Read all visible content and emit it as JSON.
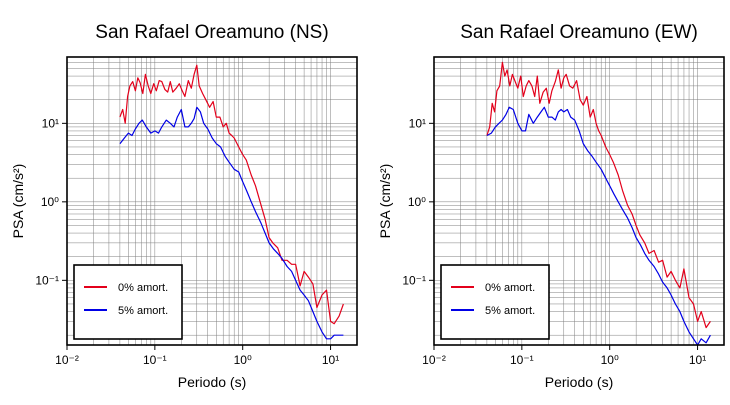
{
  "chart_data": [
    {
      "type": "line",
      "title": "San Rafael Oreamuno (NS)",
      "xlabel": "Periodo (s)",
      "ylabel": "PSA (cm/s²)",
      "xscale": "log",
      "yscale": "log",
      "xlim": [
        0.01,
        20
      ],
      "ylim": [
        0.015,
        70
      ],
      "xticks": [
        {
          "value": 0.01,
          "label": "10⁻²"
        },
        {
          "value": 0.1,
          "label": "10⁻¹"
        },
        {
          "value": 1,
          "label": "10⁰"
        },
        {
          "value": 10,
          "label": "10¹"
        }
      ],
      "yticks": [
        {
          "value": 0.1,
          "label": "10⁻¹"
        },
        {
          "value": 1,
          "label": "10⁰"
        },
        {
          "value": 10,
          "label": "10¹"
        }
      ],
      "grid": true,
      "legend_position": "bottom-left",
      "series": [
        {
          "name": "0% amort.",
          "color": "#e3001b",
          "x": [
            0.04,
            0.043,
            0.046,
            0.049,
            0.052,
            0.056,
            0.06,
            0.064,
            0.068,
            0.073,
            0.078,
            0.084,
            0.09,
            0.097,
            0.104,
            0.112,
            0.12,
            0.13,
            0.14,
            0.15,
            0.16,
            0.175,
            0.19,
            0.205,
            0.22,
            0.24,
            0.26,
            0.28,
            0.3,
            0.32,
            0.35,
            0.38,
            0.42,
            0.46,
            0.5,
            0.55,
            0.6,
            0.65,
            0.7,
            0.75,
            0.8,
            0.9,
            1.0,
            1.1,
            1.25,
            1.4,
            1.6,
            1.8,
            2.0,
            2.2,
            2.5,
            2.8,
            3.2,
            3.6,
            4.0,
            4.5,
            5.0,
            5.6,
            6.3,
            7.0,
            8.0,
            9.0,
            10.0,
            11.0,
            12.5,
            14.0
          ],
          "values": [
            12,
            15,
            10,
            22,
            30,
            34,
            26,
            38,
            33,
            24,
            42,
            30,
            24,
            32,
            26,
            35,
            34,
            27,
            25,
            34,
            25,
            28,
            32,
            26,
            22,
            35,
            28,
            42,
            55,
            30,
            24,
            20,
            16,
            19,
            12,
            12,
            9,
            10,
            7.5,
            7,
            6.5,
            5,
            4,
            3.4,
            2.2,
            1.6,
            0.95,
            0.6,
            0.35,
            0.3,
            0.26,
            0.18,
            0.18,
            0.16,
            0.16,
            0.085,
            0.13,
            0.11,
            0.09,
            0.045,
            0.065,
            0.075,
            0.03,
            0.028,
            0.035,
            0.05
          ]
        },
        {
          "name": "5% amort.",
          "color": "#0000e6",
          "x": [
            0.04,
            0.045,
            0.05,
            0.055,
            0.06,
            0.066,
            0.072,
            0.08,
            0.09,
            0.1,
            0.11,
            0.12,
            0.135,
            0.15,
            0.165,
            0.18,
            0.2,
            0.22,
            0.24,
            0.26,
            0.28,
            0.3,
            0.33,
            0.36,
            0.4,
            0.45,
            0.5,
            0.56,
            0.63,
            0.7,
            0.8,
            0.9,
            1.0,
            1.12,
            1.25,
            1.4,
            1.6,
            1.8,
            2.0,
            2.25,
            2.5,
            2.8,
            3.2,
            3.6,
            4.0,
            4.5,
            5.0,
            5.6,
            6.3,
            7.0,
            8.0,
            9.0,
            10.0,
            11.0,
            12.5,
            14.0
          ],
          "values": [
            5.5,
            6.5,
            7.5,
            7,
            8.5,
            10,
            11,
            9,
            7.5,
            8,
            7.5,
            9,
            11,
            10,
            9,
            12,
            15,
            9,
            9,
            10,
            11.5,
            16,
            14,
            10,
            8.5,
            6.5,
            5.5,
            5,
            3.8,
            3.2,
            2.6,
            2.4,
            1.8,
            1.35,
            1.0,
            0.75,
            0.55,
            0.4,
            0.3,
            0.25,
            0.22,
            0.19,
            0.15,
            0.13,
            0.1,
            0.075,
            0.065,
            0.055,
            0.04,
            0.03,
            0.022,
            0.018,
            0.018,
            0.02,
            0.02,
            0.02
          ]
        }
      ]
    },
    {
      "type": "line",
      "title": "San Rafael Oreamuno (EW)",
      "xlabel": "Periodo (s)",
      "ylabel": "PSA (cm/s²)",
      "xscale": "log",
      "yscale": "log",
      "xlim": [
        0.01,
        20
      ],
      "ylim": [
        0.015,
        70
      ],
      "xticks": [
        {
          "value": 0.01,
          "label": "10⁻²"
        },
        {
          "value": 0.1,
          "label": "10⁻¹"
        },
        {
          "value": 1,
          "label": "10⁰"
        },
        {
          "value": 10,
          "label": "10¹"
        }
      ],
      "yticks": [
        {
          "value": 0.1,
          "label": "10⁻¹"
        },
        {
          "value": 1,
          "label": "10⁰"
        },
        {
          "value": 10,
          "label": "10¹"
        }
      ],
      "grid": true,
      "legend_position": "bottom-left",
      "series": [
        {
          "name": "0% amort.",
          "color": "#e3001b",
          "x": [
            0.04,
            0.043,
            0.046,
            0.049,
            0.052,
            0.056,
            0.06,
            0.064,
            0.068,
            0.073,
            0.078,
            0.084,
            0.09,
            0.097,
            0.104,
            0.112,
            0.12,
            0.13,
            0.14,
            0.15,
            0.16,
            0.175,
            0.19,
            0.205,
            0.22,
            0.24,
            0.26,
            0.28,
            0.3,
            0.32,
            0.35,
            0.38,
            0.42,
            0.46,
            0.5,
            0.55,
            0.6,
            0.65,
            0.7,
            0.75,
            0.8,
            0.9,
            1.0,
            1.1,
            1.25,
            1.4,
            1.6,
            1.8,
            2.0,
            2.2,
            2.5,
            2.8,
            3.2,
            3.6,
            4.0,
            4.5,
            5.0,
            5.6,
            6.3,
            7.0,
            8.0,
            9.0,
            10.0,
            11.0,
            12.5,
            14.0
          ],
          "values": [
            7,
            9,
            18,
            14,
            26,
            30,
            60,
            40,
            48,
            30,
            42,
            34,
            28,
            40,
            22,
            30,
            35,
            30,
            22,
            40,
            18,
            25,
            28,
            18,
            26,
            34,
            48,
            28,
            38,
            42,
            30,
            28,
            35,
            20,
            17,
            22,
            12,
            15,
            10,
            8,
            7,
            5,
            4,
            3.2,
            2.2,
            1.4,
            0.9,
            0.7,
            0.5,
            0.38,
            0.3,
            0.22,
            0.24,
            0.17,
            0.18,
            0.11,
            0.13,
            0.1,
            0.08,
            0.14,
            0.06,
            0.05,
            0.03,
            0.04,
            0.025,
            0.03
          ]
        },
        {
          "name": "5% amort.",
          "color": "#0000e6",
          "x": [
            0.04,
            0.045,
            0.05,
            0.055,
            0.06,
            0.066,
            0.072,
            0.08,
            0.09,
            0.1,
            0.11,
            0.12,
            0.135,
            0.15,
            0.165,
            0.18,
            0.2,
            0.22,
            0.24,
            0.26,
            0.28,
            0.3,
            0.33,
            0.36,
            0.4,
            0.45,
            0.5,
            0.56,
            0.63,
            0.7,
            0.8,
            0.9,
            1.0,
            1.12,
            1.25,
            1.4,
            1.6,
            1.8,
            2.0,
            2.25,
            2.5,
            2.8,
            3.2,
            3.6,
            4.0,
            4.5,
            5.0,
            5.6,
            6.3,
            7.0,
            8.0,
            9.0,
            10.0,
            11.0,
            12.5,
            14.0
          ],
          "values": [
            7,
            7.5,
            9,
            10,
            11,
            13,
            16,
            15,
            10,
            8,
            8,
            13,
            10,
            12,
            14,
            16,
            12,
            12,
            11,
            14,
            15,
            14,
            15,
            12,
            11,
            8,
            5.5,
            4.5,
            3.8,
            3.2,
            2.6,
            2.0,
            1.6,
            1.25,
            1.0,
            0.8,
            0.62,
            0.47,
            0.35,
            0.28,
            0.22,
            0.18,
            0.15,
            0.12,
            0.095,
            0.08,
            0.065,
            0.05,
            0.04,
            0.03,
            0.022,
            0.018,
            0.015,
            0.018,
            0.016,
            0.02
          ]
        }
      ]
    }
  ]
}
